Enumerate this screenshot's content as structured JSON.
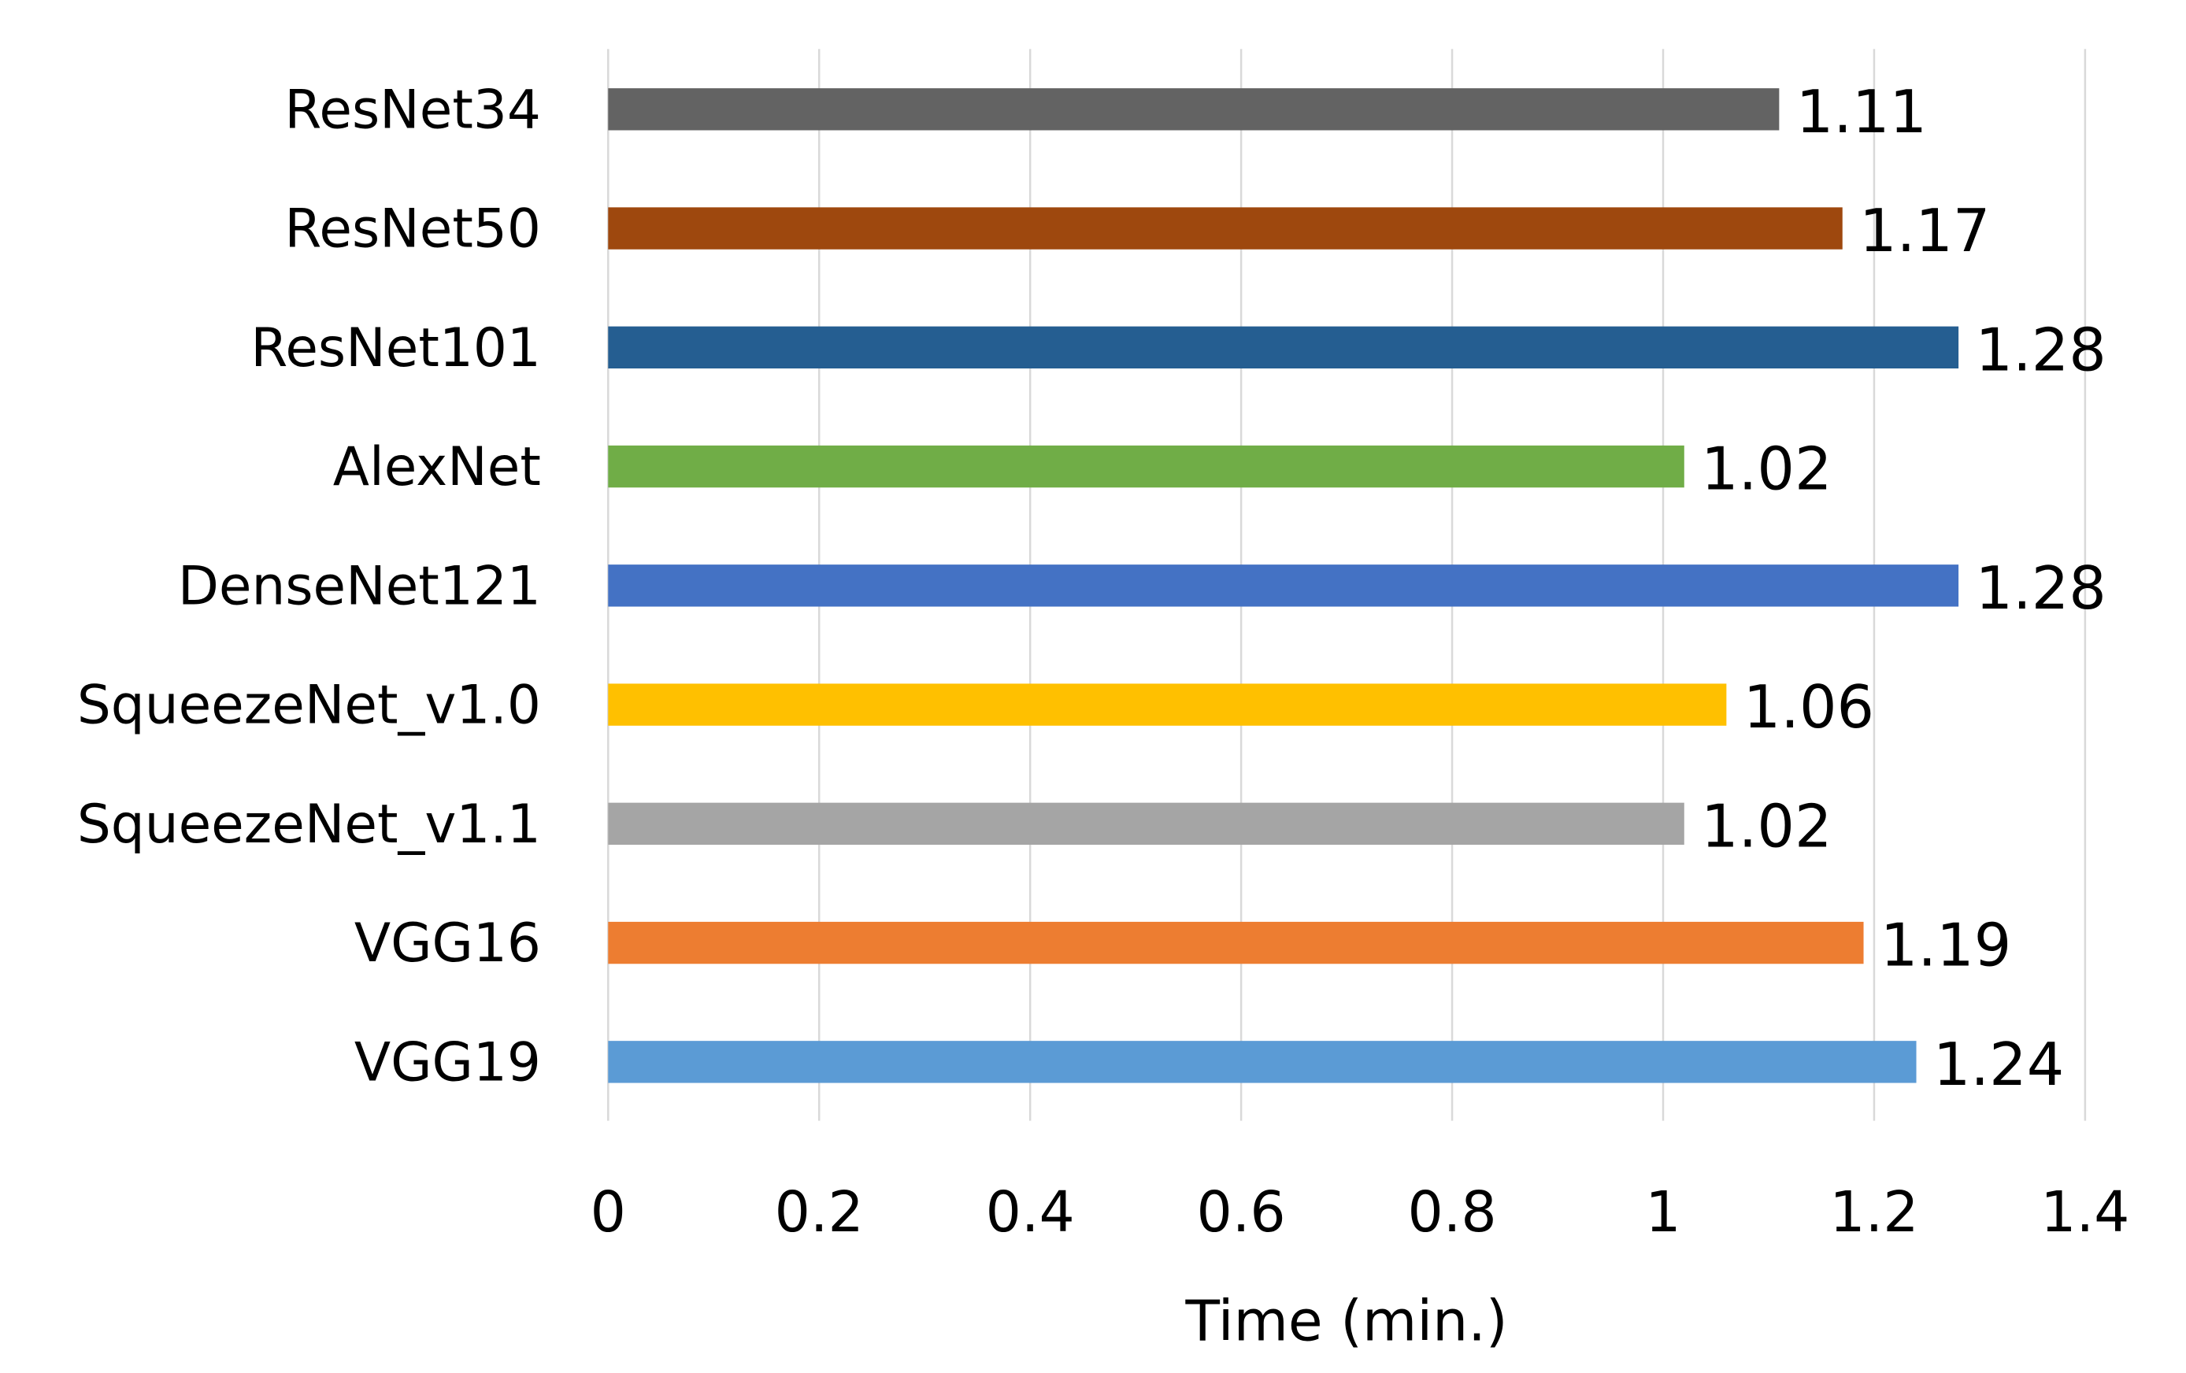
{
  "chart_data": {
    "type": "bar",
    "orientation": "horizontal",
    "title": "",
    "xlabel": "Time (min.)",
    "ylabel": "",
    "xlim": [
      0,
      1.4
    ],
    "x_ticks": [
      0,
      0.2,
      0.4,
      0.6,
      0.8,
      1,
      1.2,
      1.4
    ],
    "x_tick_labels": [
      "0",
      "0.2",
      "0.4",
      "0.6",
      "0.8",
      "1",
      "1.2",
      "1.4"
    ],
    "grid": "vertical",
    "legend": "none",
    "categories": [
      "ResNet34",
      "ResNet50",
      "ResNet101",
      "AlexNet",
      "DenseNet121",
      "SqueezeNet_v1.0",
      "SqueezeNet_v1.1",
      "VGG16",
      "VGG19"
    ],
    "values": [
      1.11,
      1.17,
      1.28,
      1.02,
      1.28,
      1.06,
      1.02,
      1.19,
      1.24
    ],
    "value_labels": [
      "1.11",
      "1.17",
      "1.28",
      "1.02",
      "1.28",
      "1.06",
      "1.02",
      "1.19",
      "1.24"
    ],
    "colors": [
      "#636363",
      "#9E480E",
      "#255E91",
      "#70AD47",
      "#4472C4",
      "#FFC000",
      "#A5A5A5",
      "#ED7D31",
      "#5B9BD5"
    ]
  }
}
